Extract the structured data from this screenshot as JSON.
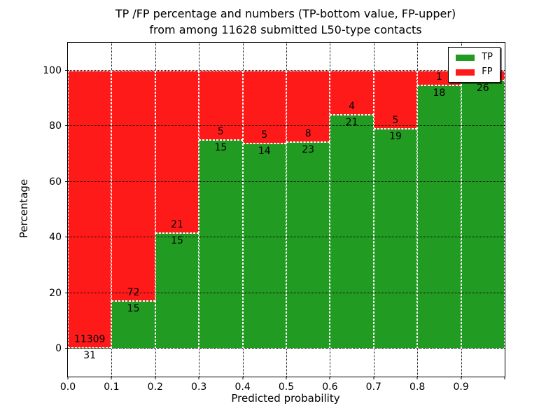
{
  "figure": {
    "title_line1": "TP /FP percentage and numbers (TP-bottom value, FP-upper)",
    "title_line2": "from among 11628 submitted L50-type contacts"
  },
  "axes": {
    "xlabel": "Predicted probability",
    "ylabel": "Percentage",
    "xtick_labels": [
      "0.0",
      "0.1",
      "0.2",
      "0.3",
      "0.4",
      "0.5",
      "0.6",
      "0.7",
      "0.8",
      "0.9"
    ],
    "ytick_labels": [
      "0",
      "20",
      "40",
      "60",
      "80",
      "100"
    ],
    "ytick_values": [
      0,
      20,
      40,
      60,
      80,
      100
    ],
    "ylim": [
      -10,
      110
    ],
    "grid_style": "dotted"
  },
  "legend": {
    "entries": [
      {
        "label": "TP",
        "color": "#229B22"
      },
      {
        "label": "FP",
        "color": "#FF1A1A"
      }
    ]
  },
  "chart_data": {
    "type": "bar",
    "stacked": true,
    "title": "TP /FP percentage and numbers (TP-bottom value, FP-upper) from among 11628 submitted L50-type contacts",
    "xlabel": "Predicted probability",
    "ylabel": "Percentage",
    "total_submitted": 11628,
    "bin_edges": [
      0.0,
      0.1,
      0.2,
      0.3,
      0.4,
      0.5,
      0.6,
      0.7,
      0.8,
      0.9,
      1.0
    ],
    "categories": [
      "0.0-0.1",
      "0.1-0.2",
      "0.2-0.3",
      "0.3-0.4",
      "0.4-0.5",
      "0.5-0.6",
      "0.6-0.7",
      "0.7-0.8",
      "0.8-0.9",
      "0.9-1.0"
    ],
    "series": [
      {
        "name": "TP",
        "color": "#229B22",
        "count_labels": [
          "31",
          "15",
          "15",
          "15",
          "14",
          "23",
          "21",
          "19",
          "18",
          "26"
        ],
        "pct": [
          0.27,
          17.24,
          41.67,
          75.0,
          73.68,
          74.19,
          84.0,
          79.17,
          94.74,
          96.3
        ]
      },
      {
        "name": "FP",
        "color": "#FF1A1A",
        "count_labels": [
          "11309",
          "72",
          "21",
          "5",
          "5",
          "8",
          "4",
          "5",
          "1",
          ""
        ],
        "pct": [
          99.73,
          82.76,
          58.33,
          25.0,
          26.32,
          25.81,
          16.0,
          20.83,
          5.26,
          3.7
        ]
      }
    ],
    "ylim": [
      -10,
      110
    ],
    "grid": true,
    "legend_position": "upper right"
  }
}
